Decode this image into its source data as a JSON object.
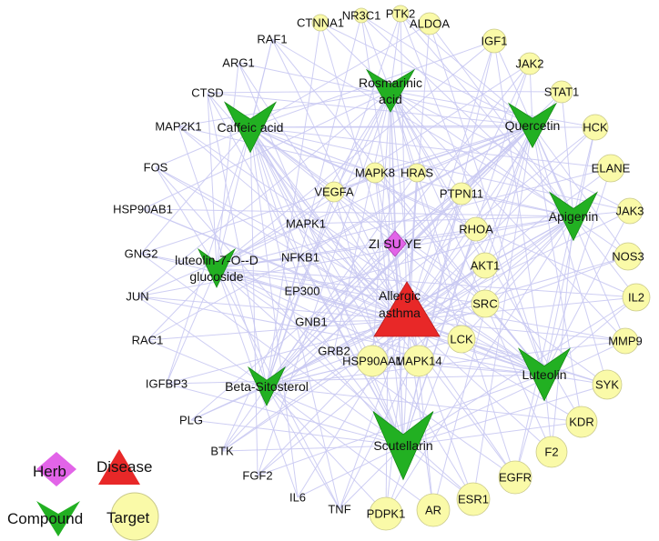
{
  "network": {
    "colors": {
      "edge": "#c9c9f2",
      "target_fill": "#fafaa8",
      "target_stroke": "#c9c98a",
      "compound_fill": "#22b022",
      "compound_stroke": "#168a16",
      "herb_fill": "#e264e8",
      "disease_fill": "#e82828"
    },
    "center": {
      "id": "disease",
      "type": "disease",
      "lines": [
        "Allergic",
        "asthma"
      ]
    },
    "herb": {
      "id": "herb",
      "type": "herb",
      "label": "ZI SU YE"
    },
    "compounds": [
      {
        "id": "rosmarinic",
        "lines": [
          "Rosmarinic",
          "acid"
        ]
      },
      {
        "id": "caffeic",
        "lines": [
          "Caffeic acid"
        ]
      },
      {
        "id": "quercetin",
        "lines": [
          "Quercetin"
        ]
      },
      {
        "id": "apigenin",
        "lines": [
          "Apigenin"
        ]
      },
      {
        "id": "luteolin7",
        "lines": [
          "luteolin-7-O--D",
          "glucoside"
        ]
      },
      {
        "id": "beta",
        "lines": [
          "Beta-Sitosterol"
        ]
      },
      {
        "id": "luteolin",
        "lines": [
          "Luteolin"
        ]
      },
      {
        "id": "scutellarin",
        "lines": [
          "Scutellarin"
        ]
      }
    ],
    "targets": [
      {
        "id": "CTNNA1",
        "label": "CTNNA1",
        "circle": true
      },
      {
        "id": "NR3C1",
        "label": "NR3C1",
        "circle": true
      },
      {
        "id": "PTK2",
        "label": "PTK2",
        "circle": true
      },
      {
        "id": "ALDOA",
        "label": "ALDOA",
        "circle": true
      },
      {
        "id": "RAF1",
        "label": "RAF1",
        "circle": true
      },
      {
        "id": "IGF1",
        "label": "IGF1",
        "circle": true
      },
      {
        "id": "ARG1",
        "label": "ARG1",
        "circle": false
      },
      {
        "id": "JAK2",
        "label": "JAK2",
        "circle": true
      },
      {
        "id": "CTSD",
        "label": "CTSD",
        "circle": false
      },
      {
        "id": "STAT1",
        "label": "STAT1",
        "circle": true
      },
      {
        "id": "MAP2K1",
        "label": "MAP2K1",
        "circle": false
      },
      {
        "id": "HCK",
        "label": "HCK",
        "circle": true
      },
      {
        "id": "ELANE",
        "label": "ELANE",
        "circle": true
      },
      {
        "id": "FOS",
        "label": "FOS",
        "circle": false
      },
      {
        "id": "MAPK8",
        "label": "MAPK8",
        "circle": true
      },
      {
        "id": "HRAS",
        "label": "HRAS",
        "circle": true
      },
      {
        "id": "VEGFA",
        "label": "VEGFA",
        "circle": true
      },
      {
        "id": "PTPN11",
        "label": "PTPN11",
        "circle": true
      },
      {
        "id": "HSP90AB1",
        "label": "HSP90AB1",
        "circle": false
      },
      {
        "id": "JAK3",
        "label": "JAK3",
        "circle": true
      },
      {
        "id": "MAPK1",
        "label": "MAPK1",
        "circle": false
      },
      {
        "id": "RHOA",
        "label": "RHOA",
        "circle": true
      },
      {
        "id": "GNG2",
        "label": "GNG2",
        "circle": false
      },
      {
        "id": "NFKB1",
        "label": "NFKB1",
        "circle": false
      },
      {
        "id": "NOS3",
        "label": "NOS3",
        "circle": true
      },
      {
        "id": "AKT1",
        "label": "AKT1",
        "circle": true
      },
      {
        "id": "JUN",
        "label": "JUN",
        "circle": false
      },
      {
        "id": "EP300",
        "label": "EP300",
        "circle": false
      },
      {
        "id": "SRC",
        "label": "SRC",
        "circle": true
      },
      {
        "id": "IL2",
        "label": "IL2",
        "circle": true
      },
      {
        "id": "RAC1",
        "label": "RAC1",
        "circle": false
      },
      {
        "id": "GNB1",
        "label": "GNB1",
        "circle": false
      },
      {
        "id": "MMP9",
        "label": "MMP9",
        "circle": true
      },
      {
        "id": "GRB2",
        "label": "GRB2",
        "circle": false
      },
      {
        "id": "LCK",
        "label": "LCK",
        "circle": true
      },
      {
        "id": "HSP90AA1",
        "label": "HSP90AA1",
        "circle": true
      },
      {
        "id": "MAPK14",
        "label": "MAPK14",
        "circle": true
      },
      {
        "id": "IGFBP3",
        "label": "IGFBP3",
        "circle": false
      },
      {
        "id": "SYK",
        "label": "SYK",
        "circle": true
      },
      {
        "id": "PLG",
        "label": "PLG",
        "circle": false
      },
      {
        "id": "KDR",
        "label": "KDR",
        "circle": true
      },
      {
        "id": "BTK",
        "label": "BTK",
        "circle": false
      },
      {
        "id": "F2",
        "label": "F2",
        "circle": true
      },
      {
        "id": "FGF2",
        "label": "FGF2",
        "circle": false
      },
      {
        "id": "EGFR",
        "label": "EGFR",
        "circle": true
      },
      {
        "id": "IL6",
        "label": "IL6",
        "circle": false
      },
      {
        "id": "ESR1",
        "label": "ESR1",
        "circle": true
      },
      {
        "id": "TNF",
        "label": "TNF",
        "circle": false
      },
      {
        "id": "AR",
        "label": "AR",
        "circle": true
      },
      {
        "id": "PDPK1",
        "label": "PDPK1",
        "circle": true
      }
    ],
    "legend": {
      "herb": "Herb",
      "disease": "Disease",
      "compound": "Compound",
      "target": "Target"
    }
  }
}
